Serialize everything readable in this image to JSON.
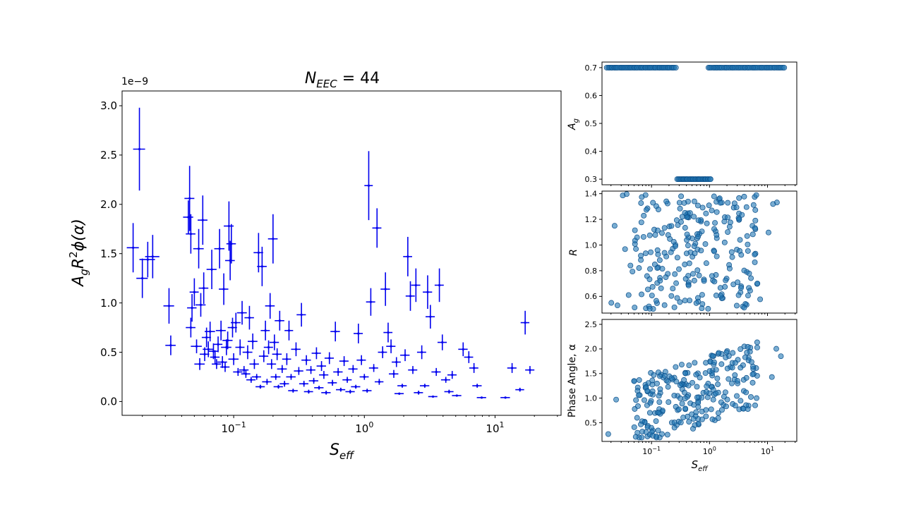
{
  "chart_data": [
    {
      "type": "scatter",
      "title": "N_EEC = 44",
      "title_parts": {
        "base": "N",
        "sub": "EEC",
        "rest": " = 44"
      },
      "xlabel_parts": {
        "base": "S",
        "sub": "eff"
      },
      "ylabel": "A_g R^2 phi(alpha)",
      "ylabel_parts": {
        "a": "A",
        "g": "g",
        "r": "R",
        "two": "2",
        "phi": "ϕ(α)"
      },
      "x_scale": "log",
      "xlim": [
        0.014,
        32
      ],
      "ylim": [
        -0.14,
        3.15
      ],
      "y_offset_text": "1e−9",
      "x_ticks": [
        0.1,
        1,
        10
      ],
      "x_tick_labels": [
        {
          "base": "10",
          "exp": "−1"
        },
        {
          "base": "10",
          "exp": "0"
        },
        {
          "base": "10",
          "exp": "1"
        }
      ],
      "y_ticks": [
        0.0,
        0.5,
        1.0,
        1.5,
        2.0,
        2.5,
        3.0
      ],
      "y_tick_labels": [
        "0.0",
        "0.5",
        "1.0",
        "1.5",
        "2.0",
        "2.5",
        "3.0"
      ],
      "color": "#0000ee",
      "markers": "errorbars",
      "points": [
        [
          0.017,
          1.56,
          0.0018,
          0.25
        ],
        [
          0.019,
          2.56,
          0.002,
          0.42
        ],
        [
          0.02,
          1.25,
          0.002,
          0.2
        ],
        [
          0.022,
          1.44,
          0.003,
          0.18
        ],
        [
          0.024,
          1.47,
          0.003,
          0.22
        ],
        [
          0.032,
          0.97,
          0.003,
          0.18
        ],
        [
          0.033,
          0.57,
          0.003,
          0.1
        ],
        [
          0.045,
          1.87,
          0.004,
          0.17
        ],
        [
          0.046,
          2.06,
          0.004,
          0.33
        ],
        [
          0.047,
          1.7,
          0.004,
          0.2
        ],
        [
          0.048,
          0.95,
          0.004,
          0.14
        ],
        [
          0.047,
          0.75,
          0.004,
          0.1
        ],
        [
          0.05,
          1.11,
          0.004,
          0.14
        ],
        [
          0.052,
          0.56,
          0.005,
          0.07
        ],
        [
          0.054,
          1.55,
          0.005,
          0.2
        ],
        [
          0.055,
          0.38,
          0.005,
          0.06
        ],
        [
          0.056,
          0.98,
          0.005,
          0.12
        ],
        [
          0.058,
          1.84,
          0.005,
          0.25
        ],
        [
          0.059,
          1.15,
          0.005,
          0.16
        ],
        [
          0.06,
          0.48,
          0.005,
          0.07
        ],
        [
          0.062,
          0.65,
          0.005,
          0.1
        ],
        [
          0.064,
          0.53,
          0.006,
          0.08
        ],
        [
          0.066,
          0.71,
          0.006,
          0.1
        ],
        [
          0.068,
          1.34,
          0.006,
          0.2
        ],
        [
          0.07,
          0.51,
          0.006,
          0.08
        ],
        [
          0.072,
          0.45,
          0.006,
          0.07
        ],
        [
          0.074,
          0.38,
          0.006,
          0.05
        ],
        [
          0.076,
          0.58,
          0.006,
          0.08
        ],
        [
          0.078,
          1.55,
          0.007,
          0.2
        ],
        [
          0.08,
          0.72,
          0.007,
          0.1
        ],
        [
          0.082,
          0.4,
          0.007,
          0.06
        ],
        [
          0.084,
          1.14,
          0.007,
          0.16
        ],
        [
          0.086,
          0.35,
          0.007,
          0.05
        ],
        [
          0.088,
          0.55,
          0.008,
          0.08
        ],
        [
          0.09,
          0.62,
          0.008,
          0.09
        ],
        [
          0.092,
          1.78,
          0.008,
          0.25
        ],
        [
          0.094,
          1.43,
          0.008,
          0.2
        ],
        [
          0.096,
          1.6,
          0.008,
          0.2
        ],
        [
          0.098,
          0.75,
          0.008,
          0.1
        ],
        [
          0.1,
          0.43,
          0.009,
          0.06
        ],
        [
          0.104,
          0.8,
          0.009,
          0.1
        ],
        [
          0.108,
          0.3,
          0.009,
          0.04
        ],
        [
          0.112,
          0.55,
          0.009,
          0.08
        ],
        [
          0.116,
          0.9,
          0.01,
          0.12
        ],
        [
          0.12,
          0.32,
          0.01,
          0.04
        ],
        [
          0.124,
          0.28,
          0.01,
          0.04
        ],
        [
          0.128,
          0.5,
          0.011,
          0.07
        ],
        [
          0.132,
          0.85,
          0.011,
          0.12
        ],
        [
          0.136,
          0.22,
          0.011,
          0.03
        ],
        [
          0.14,
          0.61,
          0.012,
          0.08
        ],
        [
          0.144,
          0.38,
          0.012,
          0.05
        ],
        [
          0.15,
          0.25,
          0.012,
          0.03
        ],
        [
          0.155,
          1.51,
          0.013,
          0.2
        ],
        [
          0.16,
          0.15,
          0.013,
          0.02
        ],
        [
          0.165,
          1.37,
          0.014,
          0.2
        ],
        [
          0.17,
          0.46,
          0.014,
          0.06
        ],
        [
          0.175,
          0.72,
          0.014,
          0.1
        ],
        [
          0.18,
          0.2,
          0.015,
          0.03
        ],
        [
          0.185,
          0.55,
          0.015,
          0.07
        ],
        [
          0.19,
          0.97,
          0.016,
          0.13
        ],
        [
          0.195,
          0.38,
          0.016,
          0.05
        ],
        [
          0.2,
          1.65,
          0.017,
          0.25
        ],
        [
          0.205,
          0.6,
          0.017,
          0.08
        ],
        [
          0.21,
          0.25,
          0.018,
          0.03
        ],
        [
          0.215,
          0.48,
          0.018,
          0.06
        ],
        [
          0.22,
          0.15,
          0.018,
          0.02
        ],
        [
          0.225,
          0.82,
          0.019,
          0.1
        ],
        [
          0.235,
          0.33,
          0.02,
          0.04
        ],
        [
          0.245,
          0.18,
          0.02,
          0.03
        ],
        [
          0.255,
          0.43,
          0.02,
          0.06
        ],
        [
          0.265,
          0.72,
          0.02,
          0.1
        ],
        [
          0.275,
          0.25,
          0.023,
          0.03
        ],
        [
          0.285,
          0.11,
          0.024,
          0.02
        ],
        [
          0.3,
          0.53,
          0.025,
          0.07
        ],
        [
          0.315,
          0.31,
          0.026,
          0.04
        ],
        [
          0.33,
          0.88,
          0.027,
          0.12
        ],
        [
          0.345,
          0.18,
          0.028,
          0.03
        ],
        [
          0.36,
          0.42,
          0.03,
          0.05
        ],
        [
          0.375,
          0.1,
          0.03,
          0.02
        ],
        [
          0.39,
          0.32,
          0.032,
          0.04
        ],
        [
          0.41,
          0.21,
          0.034,
          0.03
        ],
        [
          0.43,
          0.49,
          0.035,
          0.06
        ],
        [
          0.45,
          0.14,
          0.037,
          0.02
        ],
        [
          0.47,
          0.36,
          0.039,
          0.05
        ],
        [
          0.49,
          0.27,
          0.04,
          0.04
        ],
        [
          0.51,
          0.09,
          0.042,
          0.02
        ],
        [
          0.54,
          0.44,
          0.044,
          0.06
        ],
        [
          0.57,
          0.19,
          0.046,
          0.03
        ],
        [
          0.6,
          0.71,
          0.05,
          0.1
        ],
        [
          0.63,
          0.3,
          0.052,
          0.04
        ],
        [
          0.66,
          0.12,
          0.054,
          0.02
        ],
        [
          0.7,
          0.41,
          0.057,
          0.05
        ],
        [
          0.74,
          0.22,
          0.06,
          0.03
        ],
        [
          0.78,
          0.1,
          0.064,
          0.02
        ],
        [
          0.82,
          0.33,
          0.067,
          0.04
        ],
        [
          0.86,
          0.15,
          0.07,
          0.02
        ],
        [
          0.9,
          0.69,
          0.073,
          0.1
        ],
        [
          0.95,
          0.42,
          0.077,
          0.05
        ],
        [
          1.0,
          0.25,
          0.08,
          0.03
        ],
        [
          1.05,
          0.11,
          0.085,
          0.02
        ],
        [
          1.08,
          2.19,
          0.08,
          0.35
        ],
        [
          1.12,
          1.01,
          0.09,
          0.14
        ],
        [
          1.18,
          0.34,
          0.095,
          0.04
        ],
        [
          1.25,
          1.76,
          0.1,
          0.2
        ],
        [
          1.3,
          0.2,
          0.1,
          0.03
        ],
        [
          1.38,
          0.5,
          0.11,
          0.06
        ],
        [
          1.45,
          1.14,
          0.12,
          0.17
        ],
        [
          1.52,
          0.7,
          0.12,
          0.1
        ],
        [
          1.6,
          0.56,
          0.13,
          0.07
        ],
        [
          1.68,
          0.28,
          0.14,
          0.04
        ],
        [
          1.76,
          0.4,
          0.14,
          0.05
        ],
        [
          1.85,
          0.08,
          0.15,
          0.01
        ],
        [
          1.95,
          0.16,
          0.16,
          0.02
        ],
        [
          2.05,
          0.47,
          0.17,
          0.06
        ],
        [
          2.15,
          1.47,
          0.17,
          0.2
        ],
        [
          2.25,
          1.07,
          0.18,
          0.15
        ],
        [
          2.35,
          0.32,
          0.19,
          0.04
        ],
        [
          2.48,
          1.18,
          0.2,
          0.17
        ],
        [
          2.6,
          0.09,
          0.21,
          0.02
        ],
        [
          2.75,
          0.5,
          0.22,
          0.07
        ],
        [
          2.9,
          0.16,
          0.24,
          0.02
        ],
        [
          3.05,
          1.11,
          0.25,
          0.17
        ],
        [
          3.2,
          0.86,
          0.26,
          0.12
        ],
        [
          3.35,
          0.05,
          0.27,
          0.01
        ],
        [
          3.55,
          0.3,
          0.29,
          0.04
        ],
        [
          3.75,
          1.18,
          0.3,
          0.17
        ],
        [
          3.95,
          0.6,
          0.32,
          0.08
        ],
        [
          4.2,
          0.22,
          0.34,
          0.03
        ],
        [
          4.45,
          0.1,
          0.36,
          0.02
        ],
        [
          4.7,
          0.27,
          0.38,
          0.04
        ],
        [
          5.1,
          0.06,
          0.42,
          0.01
        ],
        [
          5.7,
          0.53,
          0.47,
          0.07
        ],
        [
          6.3,
          0.45,
          0.5,
          0.06
        ],
        [
          6.9,
          0.34,
          0.55,
          0.05
        ],
        [
          7.3,
          0.16,
          0.6,
          0.02
        ],
        [
          7.9,
          0.04,
          0.65,
          0.01
        ],
        [
          12.0,
          0.04,
          1.0,
          0.01
        ],
        [
          13.5,
          0.34,
          1.1,
          0.05
        ],
        [
          15.5,
          0.12,
          1.2,
          0.02
        ],
        [
          17.0,
          0.8,
          1.3,
          0.12
        ],
        [
          18.5,
          0.32,
          1.5,
          0.04
        ]
      ]
    },
    {
      "type": "scatter",
      "ylabel_parts": {
        "base": "A",
        "sub": "g"
      },
      "x_scale": "log",
      "xlim": [
        0.014,
        32
      ],
      "ylim": [
        0.28,
        0.72
      ],
      "y_ticks": [
        0.3,
        0.4,
        0.5,
        0.6,
        0.7
      ],
      "y_tick_labels": [
        "0.3",
        "0.4",
        "0.5",
        "0.6",
        "0.7"
      ],
      "color": "#1f77b4",
      "markers": "circles",
      "groups": [
        {
          "y": 0.7,
          "x_range": [
            0.017,
            0.26
          ],
          "count": 50
        },
        {
          "y": 0.7,
          "x_range": [
            0.96,
            19.5
          ],
          "count": 50
        },
        {
          "y": 0.3,
          "x_range": [
            0.28,
            1.05
          ],
          "count": 30
        }
      ]
    },
    {
      "type": "scatter",
      "ylabel": "R",
      "x_scale": "log",
      "xlim": [
        0.014,
        32
      ],
      "ylim": [
        0.47,
        1.42
      ],
      "y_ticks": [
        0.6,
        0.8,
        1.0,
        1.2,
        1.4
      ],
      "y_tick_labels": [
        "0.6",
        "0.8",
        "1.0",
        "1.2",
        "1.4"
      ],
      "color": "#1f77b4",
      "markers": "circles",
      "x_range": [
        0.017,
        19.5
      ],
      "y_range": [
        0.5,
        1.4
      ],
      "count": 250
    },
    {
      "type": "scatter",
      "ylabel": "Phase Angle, α",
      "xlabel_parts": {
        "base": "S",
        "sub": "eff"
      },
      "x_scale": "log",
      "xlim": [
        0.014,
        32
      ],
      "ylim": [
        0.12,
        2.6
      ],
      "x_ticks": [
        0.1,
        1,
        10
      ],
      "x_tick_labels": [
        {
          "base": "10",
          "exp": "−1"
        },
        {
          "base": "10",
          "exp": "0"
        },
        {
          "base": "10",
          "exp": "1"
        }
      ],
      "y_ticks": [
        0.5,
        1.0,
        1.5,
        2.0,
        2.5
      ],
      "y_tick_labels": [
        "0.5",
        "1.0",
        "1.5",
        "2.0",
        "2.5"
      ],
      "color": "#1f77b4",
      "markers": "circles",
      "x_range": [
        0.017,
        19.5
      ],
      "y_range": [
        0.2,
        2.5
      ],
      "count": 250
    }
  ]
}
